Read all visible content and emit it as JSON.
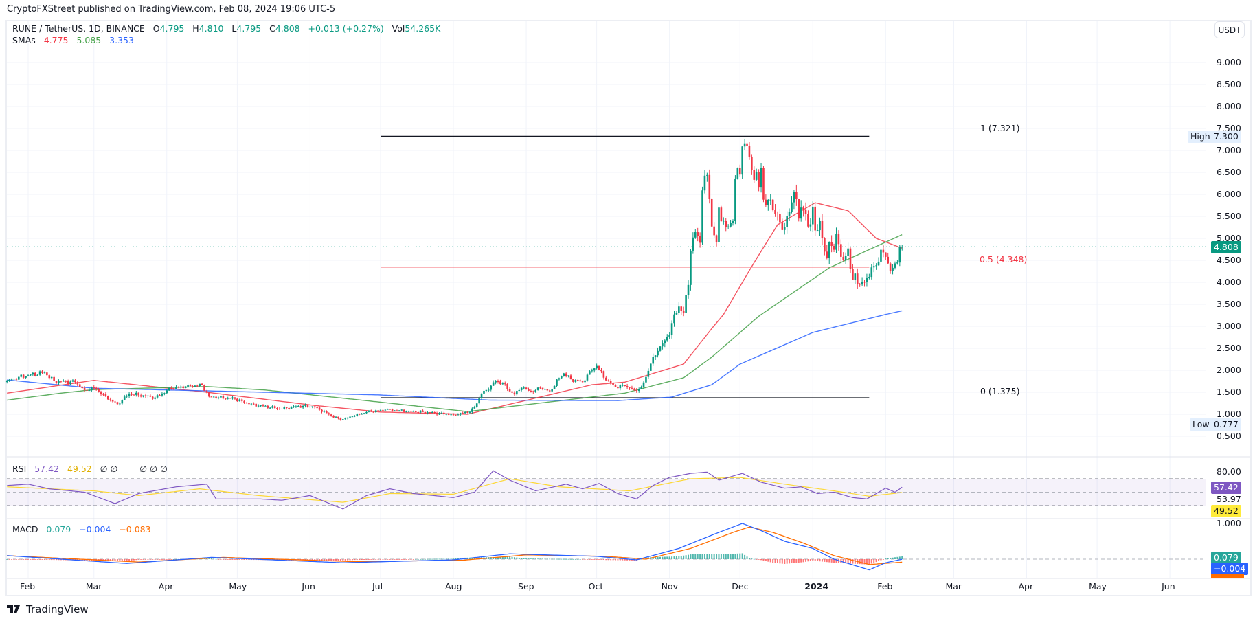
{
  "publisher": "CryptoFXStreet published on TradingView.com, Feb 08, 2024 19:06 UTC-5",
  "legend": {
    "symbol": "RUNE / TetherUS, 1D, BINANCE",
    "o_label": "O",
    "o": "4.795",
    "h_label": "H",
    "h": "4.810",
    "l_label": "L",
    "l": "4.795",
    "c_label": "C",
    "c": "4.808",
    "change": "+0.013 (+0.27%)",
    "vol_label": "Vol",
    "vol": "54.265K",
    "sma_label": "SMAs",
    "sma_values": [
      "4.775",
      "5.085",
      "3.353"
    ]
  },
  "currency_button": "USDT",
  "price_axis": {
    "ticks": [
      "9.000",
      "8.500",
      "8.000",
      "7.500",
      "7.000",
      "6.500",
      "6.000",
      "5.500",
      "5.000",
      "4.500",
      "4.000",
      "3.500",
      "3.000",
      "2.500",
      "2.000",
      "1.500",
      "1.000",
      "0.500"
    ],
    "current_price": "4.808",
    "high_label": "High",
    "high_value": "7.300",
    "low_label": "Low",
    "low_value": "0.777"
  },
  "fib": {
    "level_1": "1 (7.321)",
    "level_1_value": 7.321,
    "level_05": "0.5 (4.348)",
    "level_05_value": 4.348,
    "level_0": "0 (1.375)",
    "level_0_value": 1.375,
    "start": "2023-07-01",
    "end": "2024-01-25"
  },
  "rsi": {
    "label": "RSI",
    "value": "57.42",
    "ma_value": "49.52",
    "extra1": "∅ ∅",
    "extra2": "∅ ∅ ∅",
    "axis_tick": "80.00",
    "mid_value": "53.97"
  },
  "macd": {
    "label": "MACD",
    "hist": "0.079",
    "macd": "−0.004",
    "signal": "−0.083",
    "axis_tick": "1.000",
    "signal_badge": "−0.083"
  },
  "time_axis": [
    {
      "date": "2023-02-01",
      "label": "Feb"
    },
    {
      "date": "2023-03-01",
      "label": "Mar"
    },
    {
      "date": "2023-04-01",
      "label": "Apr"
    },
    {
      "date": "2023-05-01",
      "label": "May"
    },
    {
      "date": "2023-06-01",
      "label": "Jun"
    },
    {
      "date": "2023-07-01",
      "label": "Jul"
    },
    {
      "date": "2023-08-01",
      "label": "Aug"
    },
    {
      "date": "2023-09-01",
      "label": "Sep"
    },
    {
      "date": "2023-10-01",
      "label": "Oct"
    },
    {
      "date": "2023-11-01",
      "label": "Nov"
    },
    {
      "date": "2023-12-01",
      "label": "Dec"
    },
    {
      "date": "2024-01-01",
      "label": "2024"
    },
    {
      "date": "2024-02-01",
      "label": "Feb"
    },
    {
      "date": "2024-03-01",
      "label": "Mar"
    },
    {
      "date": "2024-04-01",
      "label": "Apr"
    },
    {
      "date": "2024-05-01",
      "label": "May"
    },
    {
      "date": "2024-06-01",
      "label": "Jun"
    }
  ],
  "footer_logo": "TradingView",
  "colors": {
    "up": "#089981",
    "down": "#f23645",
    "sma_fast": "#f23645",
    "sma_mid": "#43a047",
    "sma_slow": "#2962ff",
    "rsi": "#7e57c2",
    "rsi_ma": "#fdd835",
    "macd": "#2962ff",
    "signal": "#ff6d00"
  },
  "chart_data": {
    "type": "candlestick",
    "x_range": [
      "2023-01-22",
      "2024-06-20"
    ],
    "y_range": [
      0.3,
      9.6
    ],
    "grid": true,
    "close_path": [
      [
        "2023-01-23",
        1.75
      ],
      [
        "2023-01-28",
        1.85
      ],
      [
        "2023-02-08",
        1.95
      ],
      [
        "2023-02-12",
        1.75
      ],
      [
        "2023-02-21",
        1.73
      ],
      [
        "2023-02-25",
        1.55
      ],
      [
        "2023-03-01",
        1.6
      ],
      [
        "2023-03-04",
        1.46
      ],
      [
        "2023-03-11",
        1.23
      ],
      [
        "2023-03-16",
        1.47
      ],
      [
        "2023-03-27",
        1.38
      ],
      [
        "2023-04-03",
        1.59
      ],
      [
        "2023-04-09",
        1.62
      ],
      [
        "2023-04-16",
        1.67
      ],
      [
        "2023-04-19",
        1.4
      ],
      [
        "2023-04-30",
        1.35
      ],
      [
        "2023-05-06",
        1.23
      ],
      [
        "2023-05-20",
        1.12
      ],
      [
        "2023-05-26",
        1.18
      ],
      [
        "2023-06-02",
        1.18
      ],
      [
        "2023-06-05",
        1.1
      ],
      [
        "2023-06-10",
        0.97
      ],
      [
        "2023-06-14",
        0.87
      ],
      [
        "2023-06-19",
        0.95
      ],
      [
        "2023-06-25",
        1.05
      ],
      [
        "2023-07-03",
        1.1
      ],
      [
        "2023-07-13",
        1.07
      ],
      [
        "2023-07-24",
        1.03
      ],
      [
        "2023-08-01",
        0.99
      ],
      [
        "2023-08-08",
        1.05
      ],
      [
        "2023-08-10",
        1.16
      ],
      [
        "2023-08-13",
        1.47
      ],
      [
        "2023-08-15",
        1.55
      ],
      [
        "2023-08-19",
        1.75
      ],
      [
        "2023-08-22",
        1.7
      ],
      [
        "2023-08-25",
        1.52
      ],
      [
        "2023-08-27",
        1.45
      ],
      [
        "2023-08-30",
        1.6
      ],
      [
        "2023-09-04",
        1.5
      ],
      [
        "2023-09-07",
        1.6
      ],
      [
        "2023-09-11",
        1.52
      ],
      [
        "2023-09-15",
        1.82
      ],
      [
        "2023-09-17",
        1.93
      ],
      [
        "2023-09-20",
        1.8
      ],
      [
        "2023-09-25",
        1.73
      ],
      [
        "2023-09-28",
        1.98
      ],
      [
        "2023-10-01",
        2.1
      ],
      [
        "2023-10-05",
        1.77
      ],
      [
        "2023-10-09",
        1.62
      ],
      [
        "2023-10-13",
        1.64
      ],
      [
        "2023-10-17",
        1.55
      ],
      [
        "2023-10-20",
        1.61
      ],
      [
        "2023-10-22",
        1.85
      ],
      [
        "2023-10-24",
        2.15
      ],
      [
        "2023-10-27",
        2.44
      ],
      [
        "2023-10-30",
        2.68
      ],
      [
        "2023-11-01",
        2.81
      ],
      [
        "2023-11-03",
        3.27
      ],
      [
        "2023-11-05",
        3.45
      ],
      [
        "2023-11-07",
        3.3
      ],
      [
        "2023-11-09",
        3.94
      ],
      [
        "2023-11-10",
        4.72
      ],
      [
        "2023-11-12",
        5.14
      ],
      [
        "2023-11-14",
        4.9
      ],
      [
        "2023-11-15",
        6.09
      ],
      [
        "2023-11-17",
        6.44
      ],
      [
        "2023-11-18",
        5.9
      ],
      [
        "2023-11-19",
        5.27
      ],
      [
        "2023-11-21",
        4.91
      ],
      [
        "2023-11-22",
        5.7
      ],
      [
        "2023-11-24",
        5.4
      ],
      [
        "2023-11-25",
        5.25
      ],
      [
        "2023-11-28",
        5.4
      ],
      [
        "2023-11-29",
        6.36
      ],
      [
        "2023-12-01",
        6.45
      ],
      [
        "2023-12-02",
        7.09
      ],
      [
        "2023-12-04",
        7.1
      ],
      [
        "2023-12-05",
        6.86
      ],
      [
        "2023-12-06",
        6.55
      ],
      [
        "2023-12-07",
        6.33
      ],
      [
        "2023-12-08",
        6.5
      ],
      [
        "2023-12-09",
        6.17
      ],
      [
        "2023-12-10",
        6.6
      ],
      [
        "2023-12-11",
        5.88
      ],
      [
        "2023-12-12",
        5.75
      ],
      [
        "2023-12-14",
        5.88
      ],
      [
        "2023-12-15",
        5.65
      ],
      [
        "2023-12-17",
        5.55
      ],
      [
        "2023-12-19",
        5.19
      ],
      [
        "2023-12-21",
        5.5
      ],
      [
        "2023-12-22",
        5.6
      ],
      [
        "2023-12-24",
        6.05
      ],
      [
        "2023-12-25",
        5.9
      ],
      [
        "2023-12-26",
        5.45
      ],
      [
        "2023-12-27",
        5.7
      ],
      [
        "2023-12-29",
        5.56
      ],
      [
        "2023-12-30",
        5.27
      ],
      [
        "2023-12-31",
        5.32
      ],
      [
        "2024-01-01",
        5.72
      ],
      [
        "2024-01-02",
        5.18
      ],
      [
        "2024-01-04",
        5.4
      ],
      [
        "2024-01-05",
        5.0
      ],
      [
        "2024-01-07",
        4.56
      ],
      [
        "2024-01-08",
        4.92
      ],
      [
        "2024-01-10",
        4.74
      ],
      [
        "2024-01-11",
        5.1
      ],
      [
        "2024-01-12",
        4.87
      ],
      [
        "2024-01-13",
        4.58
      ],
      [
        "2024-01-14",
        4.5
      ],
      [
        "2024-01-16",
        4.77
      ],
      [
        "2024-01-17",
        4.3
      ],
      [
        "2024-01-18",
        4.06
      ],
      [
        "2024-01-19",
        4.2
      ],
      [
        "2024-01-21",
        3.95
      ],
      [
        "2024-01-23",
        4.0
      ],
      [
        "2024-01-24",
        4.1
      ],
      [
        "2024-01-26",
        4.34
      ],
      [
        "2024-01-27",
        4.37
      ],
      [
        "2024-01-29",
        4.47
      ],
      [
        "2024-01-30",
        4.74
      ],
      [
        "2024-01-31",
        4.68
      ],
      [
        "2024-02-01",
        4.58
      ],
      [
        "2024-02-02",
        4.43
      ],
      [
        "2024-02-04",
        4.33
      ],
      [
        "2024-02-05",
        4.43
      ],
      [
        "2024-02-06",
        4.45
      ],
      [
        "2024-02-07",
        4.795
      ],
      [
        "2024-02-08",
        4.808
      ]
    ],
    "sma_series": [
      {
        "color": "#f23645",
        "values": [
          [
            "2023-01-23",
            1.48
          ],
          [
            "2023-03-01",
            1.77
          ],
          [
            "2023-04-18",
            1.5
          ],
          [
            "2023-06-03",
            1.2
          ],
          [
            "2023-07-01",
            1.05
          ],
          [
            "2023-08-07",
            1.0
          ],
          [
            "2023-09-29",
            1.67
          ],
          [
            "2023-10-13",
            1.73
          ],
          [
            "2023-11-07",
            2.14
          ],
          [
            "2023-11-19",
            2.95
          ],
          [
            "2023-11-24",
            3.27
          ],
          [
            "2023-12-06",
            4.36
          ],
          [
            "2023-12-17",
            5.31
          ],
          [
            "2024-01-02",
            5.81
          ],
          [
            "2024-01-16",
            5.63
          ],
          [
            "2024-01-28",
            5.0
          ],
          [
            "2024-02-08",
            4.775
          ]
        ]
      },
      {
        "color": "#43a047",
        "values": [
          [
            "2023-01-23",
            1.32
          ],
          [
            "2023-02-15",
            1.48
          ],
          [
            "2023-03-01",
            1.56
          ],
          [
            "2023-04-18",
            1.63
          ],
          [
            "2023-05-13",
            1.55
          ],
          [
            "2023-06-30",
            1.28
          ],
          [
            "2023-08-07",
            1.06
          ],
          [
            "2023-10-13",
            1.48
          ],
          [
            "2023-11-07",
            1.83
          ],
          [
            "2023-11-19",
            2.3
          ],
          [
            "2023-12-09",
            3.23
          ],
          [
            "2024-01-08",
            4.33
          ],
          [
            "2024-02-08",
            5.085
          ]
        ]
      },
      {
        "color": "#2962ff",
        "values": [
          [
            "2023-01-23",
            1.78
          ],
          [
            "2023-03-01",
            1.59
          ],
          [
            "2023-06-30",
            1.44
          ],
          [
            "2023-08-17",
            1.32
          ],
          [
            "2023-10-10",
            1.31
          ],
          [
            "2023-11-02",
            1.39
          ],
          [
            "2023-11-19",
            1.67
          ],
          [
            "2023-12-01",
            2.14
          ],
          [
            "2024-01-01",
            2.86
          ],
          [
            "2024-02-01",
            3.27
          ],
          [
            "2024-02-08",
            3.353
          ]
        ]
      }
    ],
    "rsi": {
      "range": [
        10,
        100
      ],
      "bands": [
        70,
        50,
        30
      ],
      "values": [
        [
          "2023-01-23",
          60
        ],
        [
          "2023-02-01",
          62
        ],
        [
          "2023-02-10",
          55
        ],
        [
          "2023-02-25",
          50
        ],
        [
          "2023-03-10",
          33
        ],
        [
          "2023-03-20",
          48
        ],
        [
          "2023-04-05",
          58
        ],
        [
          "2023-04-18",
          62
        ],
        [
          "2023-04-22",
          40
        ],
        [
          "2023-05-10",
          40
        ],
        [
          "2023-05-20",
          38
        ],
        [
          "2023-06-01",
          45
        ],
        [
          "2023-06-10",
          32
        ],
        [
          "2023-06-15",
          25
        ],
        [
          "2023-06-25",
          45
        ],
        [
          "2023-07-05",
          55
        ],
        [
          "2023-07-15",
          48
        ],
        [
          "2023-08-01",
          42
        ],
        [
          "2023-08-10",
          50
        ],
        [
          "2023-08-18",
          82
        ],
        [
          "2023-08-25",
          68
        ],
        [
          "2023-09-05",
          52
        ],
        [
          "2023-09-18",
          62
        ],
        [
          "2023-09-25",
          55
        ],
        [
          "2023-10-02",
          63
        ],
        [
          "2023-10-10",
          48
        ],
        [
          "2023-10-18",
          40
        ],
        [
          "2023-10-25",
          60
        ],
        [
          "2023-11-01",
          72
        ],
        [
          "2023-11-10",
          78
        ],
        [
          "2023-11-17",
          80
        ],
        [
          "2023-11-22",
          68
        ],
        [
          "2023-12-02",
          78
        ],
        [
          "2023-12-10",
          65
        ],
        [
          "2023-12-20",
          56
        ],
        [
          "2023-12-27",
          58
        ],
        [
          "2024-01-03",
          48
        ],
        [
          "2024-01-10",
          50
        ],
        [
          "2024-01-18",
          42
        ],
        [
          "2024-01-24",
          40
        ],
        [
          "2024-02-01",
          56
        ],
        [
          "2024-02-05",
          50
        ],
        [
          "2024-02-08",
          57.42
        ]
      ],
      "ma": [
        [
          "2023-01-23",
          58
        ],
        [
          "2023-03-01",
          52
        ],
        [
          "2023-03-20",
          45
        ],
        [
          "2023-04-15",
          55
        ],
        [
          "2023-05-10",
          45
        ],
        [
          "2023-06-15",
          35
        ],
        [
          "2023-07-05",
          48
        ],
        [
          "2023-08-01",
          47
        ],
        [
          "2023-08-25",
          70
        ],
        [
          "2023-09-15",
          58
        ],
        [
          "2023-10-15",
          52
        ],
        [
          "2023-11-10",
          70
        ],
        [
          "2023-12-01",
          72
        ],
        [
          "2023-12-20",
          62
        ],
        [
          "2024-01-10",
          52
        ],
        [
          "2024-01-25",
          44
        ],
        [
          "2024-02-08",
          49.52
        ]
      ]
    },
    "macd": {
      "macd": [
        [
          "2023-01-23",
          0.1
        ],
        [
          "2023-03-15",
          -0.12
        ],
        [
          "2023-04-20",
          0.05
        ],
        [
          "2023-06-15",
          -0.1
        ],
        [
          "2023-08-01",
          -0.02
        ],
        [
          "2023-08-25",
          0.15
        ],
        [
          "2023-10-01",
          0.08
        ],
        [
          "2023-10-18",
          -0.02
        ],
        [
          "2023-11-05",
          0.3
        ],
        [
          "2023-11-20",
          0.7
        ],
        [
          "2023-12-02",
          1.0
        ],
        [
          "2023-12-10",
          0.8
        ],
        [
          "2023-12-20",
          0.5
        ],
        [
          "2024-01-01",
          0.3
        ],
        [
          "2024-01-10",
          0.0
        ],
        [
          "2024-01-25",
          -0.3
        ],
        [
          "2024-02-01",
          -0.1
        ],
        [
          "2024-02-08",
          -0.004
        ]
      ],
      "signal": [
        [
          "2023-01-23",
          0.1
        ],
        [
          "2023-03-20",
          -0.08
        ],
        [
          "2023-04-25",
          0.05
        ],
        [
          "2023-06-20",
          -0.07
        ],
        [
          "2023-08-05",
          -0.03
        ],
        [
          "2023-09-01",
          0.12
        ],
        [
          "2023-10-05",
          0.08
        ],
        [
          "2023-10-22",
          0.0
        ],
        [
          "2023-11-10",
          0.3
        ],
        [
          "2023-11-28",
          0.75
        ],
        [
          "2023-12-05",
          0.9
        ],
        [
          "2023-12-15",
          0.75
        ],
        [
          "2023-12-28",
          0.45
        ],
        [
          "2024-01-10",
          0.1
        ],
        [
          "2024-01-25",
          -0.15
        ],
        [
          "2024-02-08",
          -0.083
        ]
      ]
    }
  }
}
